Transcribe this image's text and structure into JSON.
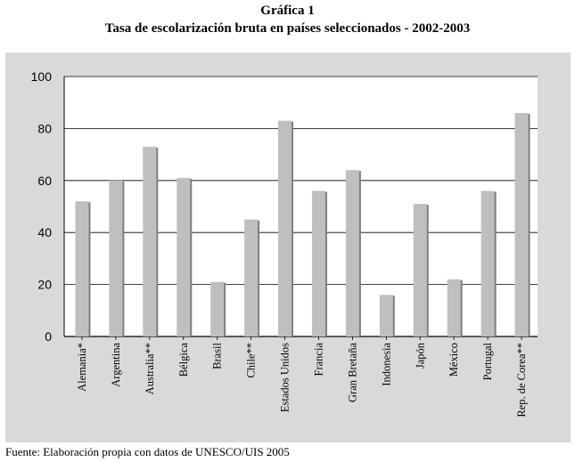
{
  "header": {
    "title": "Gráfica 1",
    "subtitle": "Tasa de escolarización bruta en países seleccionados - 2002-2003"
  },
  "footer": {
    "source": "Fuente: Elaboración propia con datos de UNESCO/UIS 2005"
  },
  "colors": {
    "bar": "#bfbfbf",
    "bar_shadow": "#7f7f7f",
    "plot_background": "#ffffff",
    "panel_background": "#d9d9d9",
    "gridline": "#000000"
  },
  "chart_data": {
    "type": "bar",
    "title": "Gráfica 1",
    "subtitle": "Tasa de escolarización bruta en países seleccionados - 2002-2003",
    "categories": [
      "Alemania*",
      "Argentina",
      "Australia**",
      "Bélgica",
      "Brasil",
      "Chile**",
      "Estados Unidos",
      "Francia",
      "Gran Bretaña",
      "Indonesia",
      "Japón",
      "México",
      "Portugal",
      "Rep. de Corea**"
    ],
    "values": [
      52,
      60,
      73,
      61,
      21,
      45,
      83,
      56,
      64,
      16,
      51,
      22,
      56,
      86
    ],
    "ylim": [
      0,
      100
    ],
    "yticks": [
      "0",
      "20",
      "40",
      "60",
      "80",
      "100"
    ],
    "xlabel": "",
    "ylabel": "",
    "grid": true,
    "legend": "none"
  }
}
